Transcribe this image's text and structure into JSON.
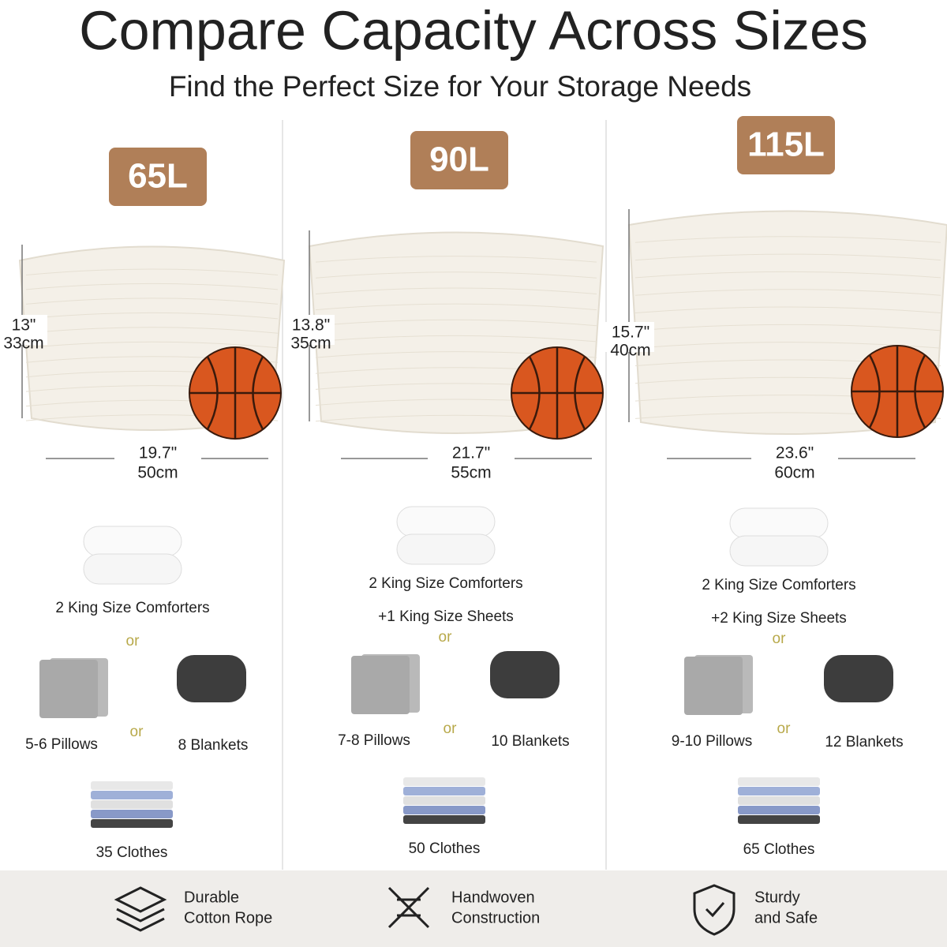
{
  "header": {
    "title": "Compare Capacity Across Sizes",
    "subtitle": "Find the Perfect Size for Your Storage Needs"
  },
  "columns": [
    {
      "capacity": "65L",
      "height": [
        "13\"",
        "33cm"
      ],
      "width": [
        "19.7\"",
        "50cm"
      ],
      "comforters": "2 King Size Comforters",
      "or": [
        "or",
        "or"
      ],
      "pillows": "5-6 Pillows",
      "blankets": "8 Blankets",
      "clothes": "35 Clothes"
    },
    {
      "capacity": "90L",
      "height": [
        "13.8\"",
        "35cm"
      ],
      "width": [
        "21.7\"",
        "55cm"
      ],
      "comforters": "2 King Size Comforters",
      "sheets": "+1 King Size Sheets",
      "or": [
        "or",
        "or"
      ],
      "pillows": "7-8 Pillows",
      "blankets": "10 Blankets",
      "clothes": "50 Clothes"
    },
    {
      "capacity": "115L",
      "height": [
        "15.7\"",
        "40cm"
      ],
      "width": [
        "23.6\"",
        "60cm"
      ],
      "comforters": "2 King Size Comforters",
      "sheets": "+2 King Size Sheets",
      "or": [
        "or",
        "or"
      ],
      "pillows": "9-10 Pillows",
      "blankets": "12 Blankets",
      "clothes": "65 Clothes"
    }
  ],
  "features": [
    [
      "Durable",
      "Cotton Rope"
    ],
    [
      "Handwoven",
      "Construction"
    ],
    [
      "Sturdy",
      "and Safe"
    ]
  ]
}
